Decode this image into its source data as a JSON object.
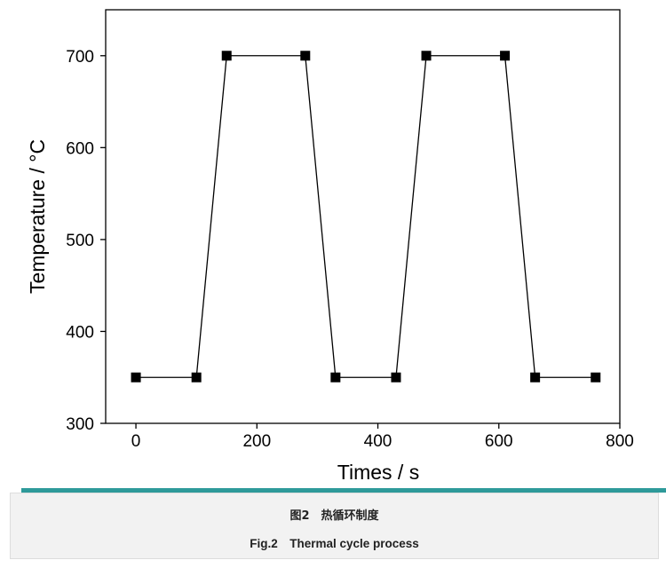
{
  "chart_data": {
    "type": "line",
    "xlabel": "Times / s",
    "ylabel": "Temperature / °C",
    "xlim": [
      -50,
      800
    ],
    "ylim": [
      300,
      750
    ],
    "xticks": [
      0,
      200,
      400,
      600,
      800
    ],
    "yticks": [
      300,
      400,
      500,
      600,
      700
    ],
    "grid": false,
    "marker": "square",
    "series": [
      {
        "x": [
          0,
          100,
          150,
          280,
          330,
          430,
          480,
          610,
          660,
          760
        ],
        "values": [
          350,
          350,
          700,
          700,
          350,
          350,
          700,
          700,
          350,
          350
        ]
      }
    ]
  },
  "caption": {
    "chinese": "图2　热循环制度",
    "english": "Fig.2　Thermal cycle process"
  },
  "colors": {
    "line": "#000000",
    "marker": "#000000",
    "accent_bar": "#2e9a9a",
    "caption_bg": "#f2f2f2"
  }
}
